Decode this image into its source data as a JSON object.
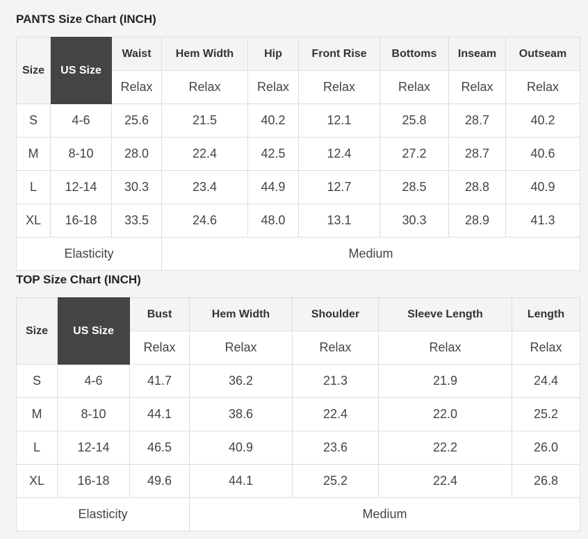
{
  "pants": {
    "title": "PANTS Size Chart (INCH)",
    "size_label": "Size",
    "us_size_label": "US Size",
    "columns": [
      "Waist",
      "Hem Width",
      "Hip",
      "Front Rise",
      "Bottoms",
      "Inseam",
      "Outseam"
    ],
    "fit": [
      "Relax",
      "Relax",
      "Relax",
      "Relax",
      "Relax",
      "Relax",
      "Relax"
    ],
    "rows": [
      {
        "size": "S",
        "us": "4-6",
        "values": [
          "25.6",
          "21.5",
          "40.2",
          "12.1",
          "25.8",
          "28.7",
          "40.2"
        ]
      },
      {
        "size": "M",
        "us": "8-10",
        "values": [
          "28.0",
          "22.4",
          "42.5",
          "12.4",
          "27.2",
          "28.7",
          "40.6"
        ]
      },
      {
        "size": "L",
        "us": "12-14",
        "values": [
          "30.3",
          "23.4",
          "44.9",
          "12.7",
          "28.5",
          "28.8",
          "40.9"
        ]
      },
      {
        "size": "XL",
        "us": "16-18",
        "values": [
          "33.5",
          "24.6",
          "48.0",
          "13.1",
          "30.3",
          "28.9",
          "41.3"
        ]
      }
    ],
    "elasticity_label": "Elasticity",
    "elasticity_value": "Medium"
  },
  "top": {
    "title": "TOP Size Chart (INCH)",
    "size_label": "Size",
    "us_size_label": "US Size",
    "columns": [
      "Bust",
      "Hem Width",
      "Shoulder",
      "Sleeve Length",
      "Length"
    ],
    "fit": [
      "Relax",
      "Relax",
      "Relax",
      "Relax",
      "Relax"
    ],
    "rows": [
      {
        "size": "S",
        "us": "4-6",
        "values": [
          "41.7",
          "36.2",
          "21.3",
          "21.9",
          "24.4"
        ]
      },
      {
        "size": "M",
        "us": "8-10",
        "values": [
          "44.1",
          "38.6",
          "22.4",
          "22.0",
          "25.2"
        ]
      },
      {
        "size": "L",
        "us": "12-14",
        "values": [
          "46.5",
          "40.9",
          "23.6",
          "22.2",
          "26.0"
        ]
      },
      {
        "size": "XL",
        "us": "16-18",
        "values": [
          "49.6",
          "44.1",
          "25.2",
          "22.4",
          "26.8"
        ]
      }
    ],
    "elasticity_label": "Elasticity",
    "elasticity_value": "Medium"
  },
  "colors": {
    "header_bg": "#f4f4f4",
    "us_size_bg": "#444444",
    "border": "#dcdcdc"
  }
}
